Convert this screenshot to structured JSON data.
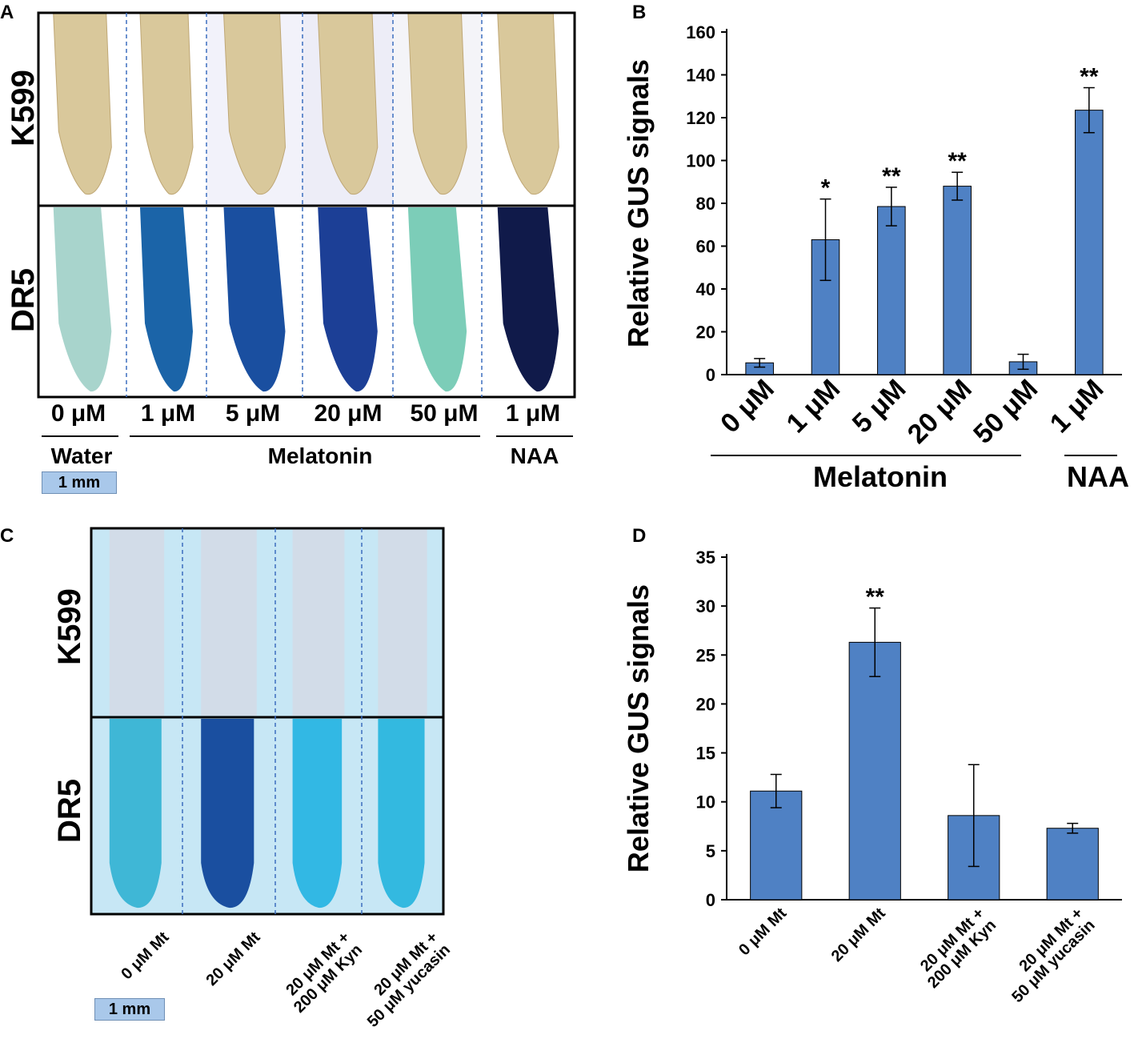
{
  "panels": {
    "A": {
      "letter": "A",
      "row_labels": [
        "K599",
        "DR5"
      ],
      "conc_labels": [
        "0 μM",
        "1 μM",
        "5 μM",
        "20 μM",
        "50 μM",
        "1 μM"
      ],
      "group_labels": [
        "Water",
        "Melatonin",
        "NAA"
      ],
      "scale": "1 mm",
      "colors": {
        "k599_tissue": "#d9c89b",
        "k599_bg": [
          "#ffffff",
          "#ffffff",
          "#f2f2fa",
          "#ededf7",
          "#f4f4f8",
          "#ffffff"
        ],
        "dr5_tissue": [
          "#a8d4cc",
          "#1b64a8",
          "#1a4fa0",
          "#1c3f96",
          "#7ccdb8",
          "#101a4a"
        ]
      }
    },
    "B": {
      "letter": "B",
      "group_labels": [
        "Melatonin",
        "NAA"
      ]
    },
    "C": {
      "letter": "C",
      "row_labels": [
        "K599",
        "DR5"
      ],
      "categories": [
        "0 μM Mt",
        "20 μM Mt",
        "20 μM Mt +\n200 μM Kyn",
        "20 μM Mt +\n50 μM yucasin"
      ],
      "scale": "1 mm",
      "colors": {
        "k599_bg": "#c7e7f5",
        "k599_tissue": "#d4d9e5",
        "dr5_bg": "#c7e7f5",
        "dr5_tissue": [
          "#3fb7d6",
          "#1a4fa0",
          "#32b8e4",
          "#33b9e0"
        ]
      }
    },
    "D": {
      "letter": "D"
    }
  },
  "chart_data": [
    {
      "type": "bar",
      "panel": "B",
      "categories": [
        "0 μM",
        "1 μM",
        "5 μM",
        "20 μM",
        "50 μM",
        "1 μM"
      ],
      "values": [
        5.5,
        63,
        78.5,
        88,
        6,
        123.5
      ],
      "errors": [
        2,
        19,
        9,
        6.5,
        3.5,
        10.5
      ],
      "significance": [
        "",
        "*",
        "**",
        "**",
        "",
        "**"
      ],
      "ylabel": "Relative GUS signals",
      "ylim": [
        0,
        160
      ],
      "yticks": [
        0,
        20,
        40,
        60,
        80,
        100,
        120,
        140,
        160
      ],
      "bar_color": "#4f81c4"
    },
    {
      "type": "bar",
      "panel": "D",
      "categories": [
        "0 μM Mt",
        "20 μM Mt",
        "20 μM Mt +\n200 μM Kyn",
        "20 μM Mt +\n50 μM yucasin"
      ],
      "values": [
        11.1,
        26.3,
        8.6,
        7.3
      ],
      "errors": [
        1.7,
        3.5,
        5.2,
        0.5
      ],
      "significance": [
        "",
        "**",
        "",
        ""
      ],
      "ylabel": "Relative GUS signals",
      "ylim": [
        0,
        35
      ],
      "yticks": [
        0,
        5,
        10,
        15,
        20,
        25,
        30,
        35
      ],
      "bar_color": "#4f81c4"
    }
  ]
}
